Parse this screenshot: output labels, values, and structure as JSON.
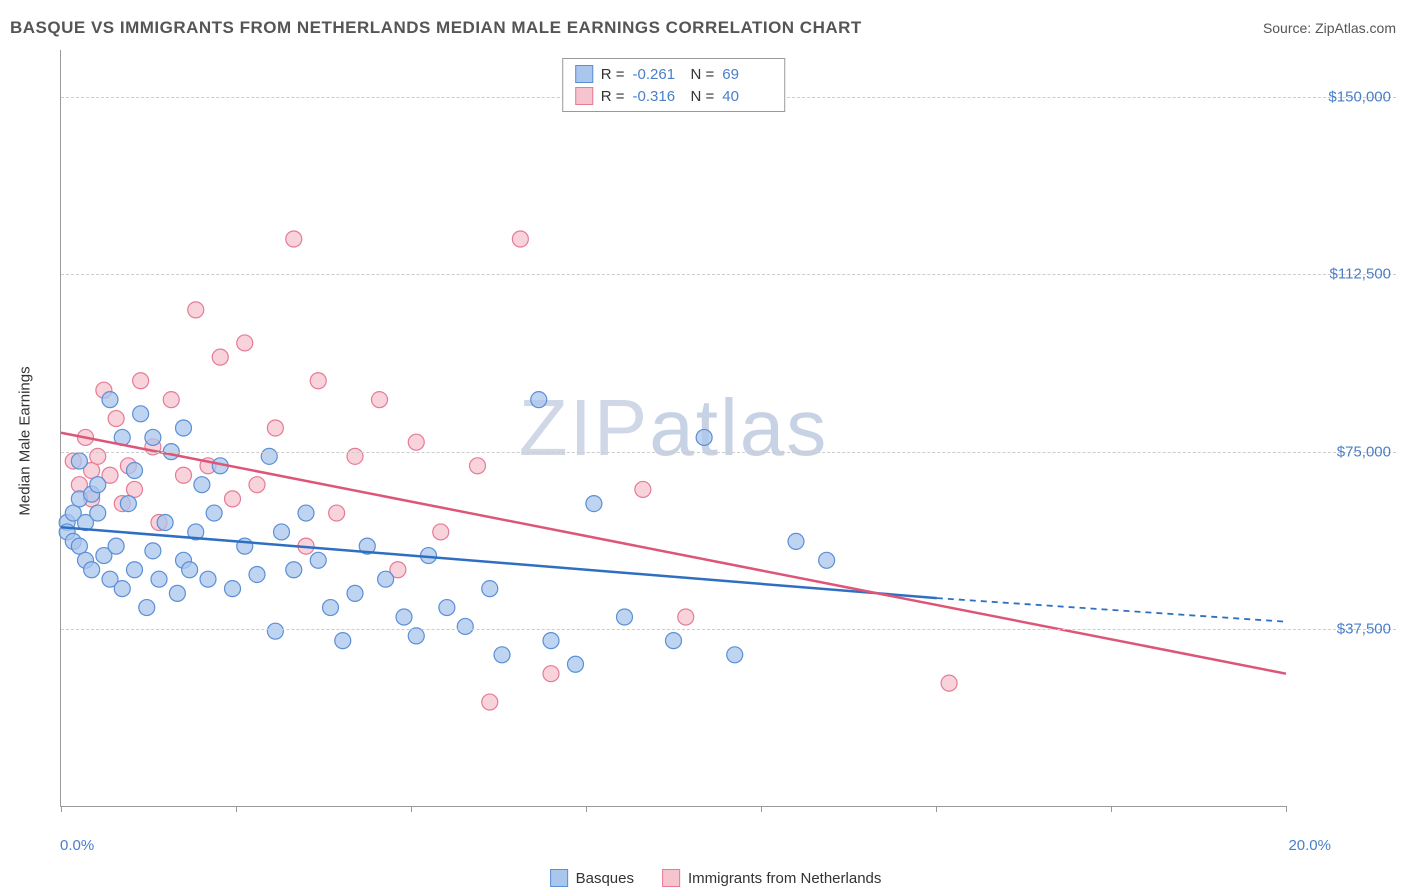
{
  "header": {
    "title": "BASQUE VS IMMIGRANTS FROM NETHERLANDS MEDIAN MALE EARNINGS CORRELATION CHART",
    "source": "Source: ZipAtlas.com"
  },
  "axes": {
    "y_label": "Median Male Earnings",
    "x_min": 0.0,
    "x_max": 20.0,
    "y_min": 0,
    "y_max": 160000,
    "y_ticks": [
      37500,
      75000,
      112500,
      150000
    ],
    "y_tick_labels": [
      "$37,500",
      "$75,000",
      "$112,500",
      "$150,000"
    ],
    "x_tick_positions": [
      0,
      2.86,
      5.71,
      8.57,
      11.43,
      14.29,
      17.14,
      20.0
    ],
    "x_label_min": "0.0%",
    "x_label_max": "20.0%"
  },
  "watermark": {
    "part1": "ZIP",
    "part2": "atlas"
  },
  "series": {
    "basques": {
      "label": "Basques",
      "fill": "#a9c6ec",
      "stroke": "#5b8fd6",
      "line_color": "#2f6fc2",
      "marker_radius": 8,
      "marker_opacity": 0.75,
      "R": "-0.261",
      "N": "69",
      "trend": {
        "x1": 0.0,
        "y1": 59000,
        "x2": 14.3,
        "y2": 44000,
        "dash_to_x": 20.0,
        "dash_to_y": 39000
      },
      "points": [
        [
          0.1,
          60000
        ],
        [
          0.1,
          58000
        ],
        [
          0.2,
          62000
        ],
        [
          0.2,
          56000
        ],
        [
          0.3,
          55000
        ],
        [
          0.3,
          65000
        ],
        [
          0.3,
          73000
        ],
        [
          0.4,
          60000
        ],
        [
          0.4,
          52000
        ],
        [
          0.5,
          66000
        ],
        [
          0.5,
          50000
        ],
        [
          0.6,
          62000
        ],
        [
          0.6,
          68000
        ],
        [
          0.7,
          53000
        ],
        [
          0.8,
          86000
        ],
        [
          0.8,
          48000
        ],
        [
          0.9,
          55000
        ],
        [
          1.0,
          78000
        ],
        [
          1.0,
          46000
        ],
        [
          1.1,
          64000
        ],
        [
          1.2,
          71000
        ],
        [
          1.2,
          50000
        ],
        [
          1.3,
          83000
        ],
        [
          1.4,
          42000
        ],
        [
          1.5,
          78000
        ],
        [
          1.5,
          54000
        ],
        [
          1.6,
          48000
        ],
        [
          1.7,
          60000
        ],
        [
          1.8,
          75000
        ],
        [
          1.9,
          45000
        ],
        [
          2.0,
          80000
        ],
        [
          2.0,
          52000
        ],
        [
          2.1,
          50000
        ],
        [
          2.2,
          58000
        ],
        [
          2.3,
          68000
        ],
        [
          2.4,
          48000
        ],
        [
          2.5,
          62000
        ],
        [
          2.6,
          72000
        ],
        [
          2.8,
          46000
        ],
        [
          3.0,
          55000
        ],
        [
          3.2,
          49000
        ],
        [
          3.4,
          74000
        ],
        [
          3.5,
          37000
        ],
        [
          3.6,
          58000
        ],
        [
          3.8,
          50000
        ],
        [
          4.0,
          62000
        ],
        [
          4.2,
          52000
        ],
        [
          4.4,
          42000
        ],
        [
          4.6,
          35000
        ],
        [
          4.8,
          45000
        ],
        [
          5.0,
          55000
        ],
        [
          5.3,
          48000
        ],
        [
          5.6,
          40000
        ],
        [
          5.8,
          36000
        ],
        [
          6.0,
          53000
        ],
        [
          6.3,
          42000
        ],
        [
          6.6,
          38000
        ],
        [
          7.0,
          46000
        ],
        [
          7.2,
          32000
        ],
        [
          7.8,
          86000
        ],
        [
          8.0,
          35000
        ],
        [
          8.4,
          30000
        ],
        [
          8.7,
          64000
        ],
        [
          9.2,
          40000
        ],
        [
          10.0,
          35000
        ],
        [
          10.5,
          78000
        ],
        [
          11.0,
          32000
        ],
        [
          12.0,
          56000
        ],
        [
          12.5,
          52000
        ]
      ]
    },
    "netherlands": {
      "label": "Immigrants from Netherlands",
      "fill": "#f5c4cf",
      "stroke": "#e67b95",
      "line_color": "#dd5577",
      "marker_radius": 8,
      "marker_opacity": 0.75,
      "R": "-0.316",
      "N": "40",
      "trend": {
        "x1": 0.0,
        "y1": 79000,
        "x2": 20.0,
        "y2": 28000
      },
      "points": [
        [
          0.2,
          73000
        ],
        [
          0.3,
          68000
        ],
        [
          0.4,
          78000
        ],
        [
          0.5,
          71000
        ],
        [
          0.5,
          65000
        ],
        [
          0.6,
          74000
        ],
        [
          0.7,
          88000
        ],
        [
          0.8,
          70000
        ],
        [
          0.9,
          82000
        ],
        [
          1.0,
          64000
        ],
        [
          1.1,
          72000
        ],
        [
          1.2,
          67000
        ],
        [
          1.3,
          90000
        ],
        [
          1.5,
          76000
        ],
        [
          1.6,
          60000
        ],
        [
          1.8,
          86000
        ],
        [
          2.0,
          70000
        ],
        [
          2.2,
          105000
        ],
        [
          2.4,
          72000
        ],
        [
          2.6,
          95000
        ],
        [
          2.8,
          65000
        ],
        [
          3.0,
          98000
        ],
        [
          3.2,
          68000
        ],
        [
          3.5,
          80000
        ],
        [
          3.8,
          120000
        ],
        [
          4.0,
          55000
        ],
        [
          4.2,
          90000
        ],
        [
          4.5,
          62000
        ],
        [
          4.8,
          74000
        ],
        [
          5.2,
          86000
        ],
        [
          5.5,
          50000
        ],
        [
          5.8,
          77000
        ],
        [
          6.2,
          58000
        ],
        [
          6.8,
          72000
        ],
        [
          7.0,
          22000
        ],
        [
          7.5,
          120000
        ],
        [
          8.0,
          28000
        ],
        [
          9.5,
          67000
        ],
        [
          10.2,
          40000
        ],
        [
          14.5,
          26000
        ]
      ]
    }
  },
  "legend_bottom": [
    {
      "label": "Basques",
      "fill": "#a9c6ec",
      "stroke": "#5b8fd6"
    },
    {
      "label": "Immigrants from Netherlands",
      "fill": "#f5c4cf",
      "stroke": "#e67b95"
    }
  ],
  "colors": {
    "grid": "#cccccc",
    "axis": "#999999",
    "tick_label": "#4a7ec9",
    "background": "#ffffff"
  },
  "typography": {
    "title_fontsize": 17,
    "label_fontsize": 15,
    "tick_fontsize": 15,
    "font_family": "Arial"
  }
}
